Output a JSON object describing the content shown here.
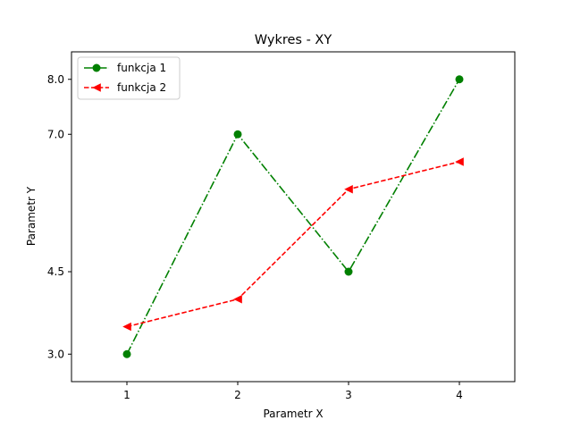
{
  "chart_data": {
    "type": "line",
    "title": "Wykres - XY",
    "xlabel": "Parametr X",
    "ylabel": "Parametr Y",
    "x": [
      1,
      2,
      3,
      4
    ],
    "xticks": [
      "1",
      "2",
      "3",
      "4"
    ],
    "yticks": [
      3.0,
      4.5,
      7.0,
      8.0
    ],
    "ytick_labels": [
      "3.0",
      "4.5",
      "7.0",
      "8.0"
    ],
    "xlim": [
      0.5,
      4.5
    ],
    "ylim": [
      2.5,
      8.5
    ],
    "grid": false,
    "legend_position": "top-left",
    "series": [
      {
        "name": "funkcja 1",
        "values": [
          3.0,
          7.0,
          4.5,
          8.0
        ],
        "color": "#008000",
        "line_style": "dash-dot",
        "marker": "circle"
      },
      {
        "name": "funkcja 2",
        "values": [
          3.5,
          4.0,
          6.0,
          6.5
        ],
        "color": "#ff0000",
        "line_style": "dashed",
        "marker": "triangle-left"
      }
    ]
  }
}
